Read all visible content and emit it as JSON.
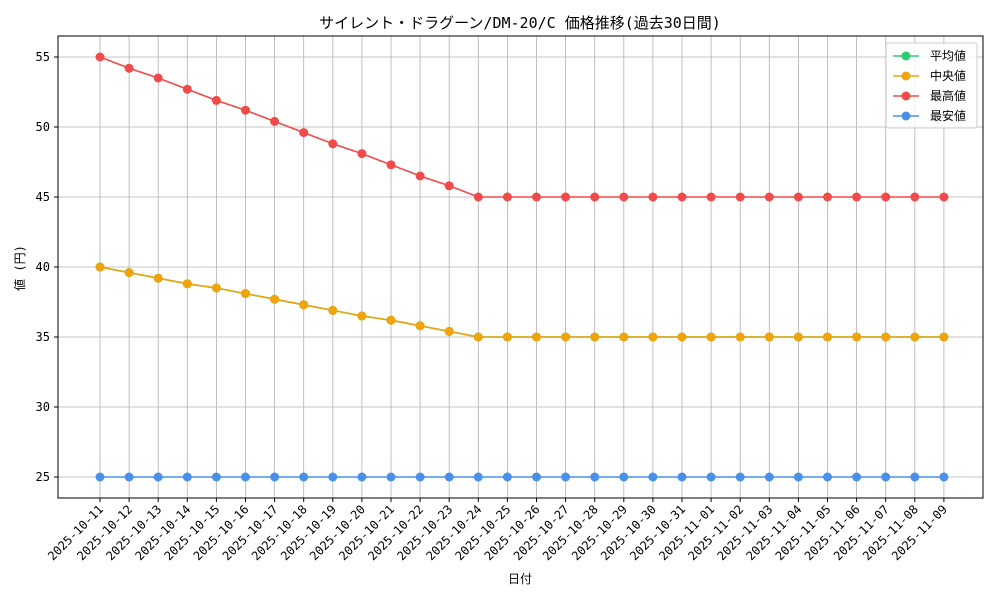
{
  "chart_data": {
    "type": "line",
    "title": "サイレント・ドラグーン/DM-20/C 価格推移(過去30日間)",
    "xlabel": "日付",
    "ylabel": "値 (円)",
    "ylim": [
      23.5,
      56.5
    ],
    "yticks": [
      25,
      30,
      35,
      40,
      45,
      50,
      55
    ],
    "grid": true,
    "legend_position": "top-right",
    "categories": [
      "2025-10-11",
      "2025-10-12",
      "2025-10-13",
      "2025-10-14",
      "2025-10-15",
      "2025-10-16",
      "2025-10-17",
      "2025-10-18",
      "2025-10-19",
      "2025-10-20",
      "2025-10-21",
      "2025-10-22",
      "2025-10-23",
      "2025-10-24",
      "2025-10-25",
      "2025-10-26",
      "2025-10-27",
      "2025-10-28",
      "2025-10-29",
      "2025-10-30",
      "2025-10-31",
      "2025-11-01",
      "2025-11-02",
      "2025-11-03",
      "2025-11-04",
      "2025-11-05",
      "2025-11-06",
      "2025-11-07",
      "2025-11-08",
      "2025-11-09"
    ],
    "series": [
      {
        "name": "平均値",
        "color": "#2ecc71",
        "values": [
          40,
          39.6,
          39.2,
          38.8,
          38.5,
          38.1,
          37.7,
          37.3,
          36.9,
          36.5,
          36.2,
          35.8,
          35.4,
          35,
          35,
          35,
          35,
          35,
          35,
          35,
          35,
          35,
          35,
          35,
          35,
          35,
          35,
          35,
          35,
          35
        ]
      },
      {
        "name": "中央値",
        "color": "#f0a30a",
        "values": [
          40,
          39.6,
          39.2,
          38.8,
          38.5,
          38.1,
          37.7,
          37.3,
          36.9,
          36.5,
          36.2,
          35.8,
          35.4,
          35,
          35,
          35,
          35,
          35,
          35,
          35,
          35,
          35,
          35,
          35,
          35,
          35,
          35,
          35,
          35,
          35
        ]
      },
      {
        "name": "最高値",
        "color": "#f04a4a",
        "values": [
          55,
          54.2,
          53.5,
          52.7,
          51.9,
          51.2,
          50.4,
          49.6,
          48.8,
          48.1,
          47.3,
          46.5,
          45.8,
          45,
          45,
          45,
          45,
          45,
          45,
          45,
          45,
          45,
          45,
          45,
          45,
          45,
          45,
          45,
          45,
          45
        ]
      },
      {
        "name": "最安値",
        "color": "#4a90e8",
        "values": [
          25,
          25,
          25,
          25,
          25,
          25,
          25,
          25,
          25,
          25,
          25,
          25,
          25,
          25,
          25,
          25,
          25,
          25,
          25,
          25,
          25,
          25,
          25,
          25,
          25,
          25,
          25,
          25,
          25,
          25
        ]
      }
    ]
  }
}
